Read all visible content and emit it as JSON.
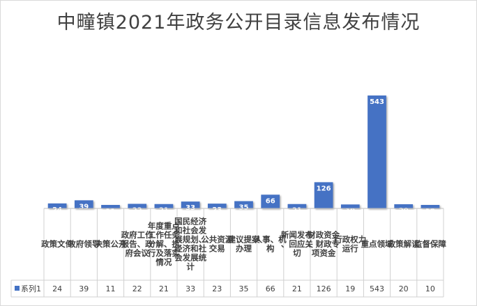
{
  "chart_data": {
    "type": "bar",
    "title": "中疃镇2021年政务公开目录信息发布情况",
    "xlabel": "",
    "ylabel": "",
    "categories": [
      "政策文件",
      "政府领导",
      "决策公开",
      "政府工作报告、政府会议",
      "年度重点工作任务分解、执行及落实情况",
      "国民经济和社会发展规划、经济和社会发展统计",
      "公共资源交易",
      "建议提案办理",
      "人事、机构",
      "新闻发布、回应关切",
      "财政资金、财政专项资金",
      "行政权力运行",
      "重点领域",
      "政策解读",
      "监督保障"
    ],
    "series": [
      {
        "name": "系列1",
        "values": [
          24,
          39,
          11,
          22,
          21,
          33,
          23,
          35,
          66,
          21,
          126,
          19,
          543,
          20,
          10
        ]
      }
    ],
    "ylim": [
      0,
      543
    ],
    "grid": false,
    "legend": "data-table",
    "bar_color": "#4472c4"
  }
}
